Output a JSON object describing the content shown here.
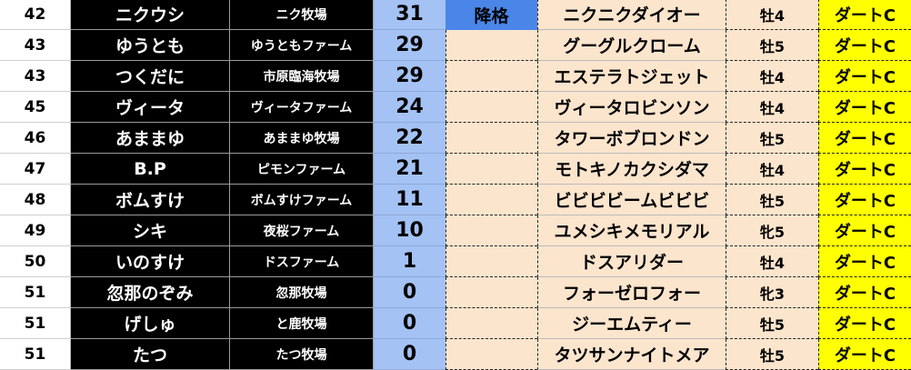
{
  "colors": {
    "name_bg": "#000000",
    "points_bg": "#a4c2f4",
    "status_highlight": "#4a86e8",
    "horse_bg": "#fce5cd",
    "class_bg": "#ffff00"
  },
  "rows": [
    {
      "rank": "42",
      "name": "ニクウシ",
      "farm": "ニク牧場",
      "points": "31",
      "status": "降格",
      "horse": "ニクニクダイオー",
      "sex_age": "牡4",
      "class": "ダートC"
    },
    {
      "rank": "43",
      "name": "ゆうとも",
      "farm": "ゆうともファーム",
      "points": "29",
      "status": "",
      "horse": "グーグルクローム",
      "sex_age": "牡5",
      "class": "ダートC"
    },
    {
      "rank": "43",
      "name": "つくだに",
      "farm": "市原臨海牧場",
      "points": "29",
      "status": "",
      "horse": "エステラトジェット",
      "sex_age": "牡4",
      "class": "ダートC"
    },
    {
      "rank": "45",
      "name": "ヴィータ",
      "farm": "ヴィータファーム",
      "points": "24",
      "status": "",
      "horse": "ヴィータロビンソン",
      "sex_age": "牡4",
      "class": "ダートC"
    },
    {
      "rank": "46",
      "name": "あままゆ",
      "farm": "あままゆ牧場",
      "points": "22",
      "status": "",
      "horse": "タワーボブロンドン",
      "sex_age": "牡5",
      "class": "ダートC"
    },
    {
      "rank": "47",
      "name": "B.P",
      "farm": "ピモンファーム",
      "points": "21",
      "status": "",
      "horse": "モトキノカクシダマ",
      "sex_age": "牡4",
      "class": "ダートC"
    },
    {
      "rank": "48",
      "name": "ボムすけ",
      "farm": "ボムすけファーム",
      "points": "11",
      "status": "",
      "horse": "ビビビビームビビビ",
      "sex_age": "牡5",
      "class": "ダートC"
    },
    {
      "rank": "49",
      "name": "シキ",
      "farm": "夜桜ファーム",
      "points": "10",
      "status": "",
      "horse": "ユメシキメモリアル",
      "sex_age": "牝5",
      "class": "ダートC"
    },
    {
      "rank": "50",
      "name": "いのすけ",
      "farm": "ドスファーム",
      "points": "1",
      "status": "",
      "horse": "ドスアリダー",
      "sex_age": "牡4",
      "class": "ダートC"
    },
    {
      "rank": "51",
      "name": "忽那のぞみ",
      "farm": "忽那牧場",
      "points": "0",
      "status": "",
      "horse": "フォーゼロフォー",
      "sex_age": "牝3",
      "class": "ダートC"
    },
    {
      "rank": "51",
      "name": "げしゅ",
      "farm": "と鹿牧場",
      "points": "0",
      "status": "",
      "horse": "ジーエムティー",
      "sex_age": "牡5",
      "class": "ダートC"
    },
    {
      "rank": "51",
      "name": "たつ",
      "farm": "たつ牧場",
      "points": "0",
      "status": "",
      "horse": "タツサンナイトメア",
      "sex_age": "牡5",
      "class": "ダートC"
    }
  ]
}
